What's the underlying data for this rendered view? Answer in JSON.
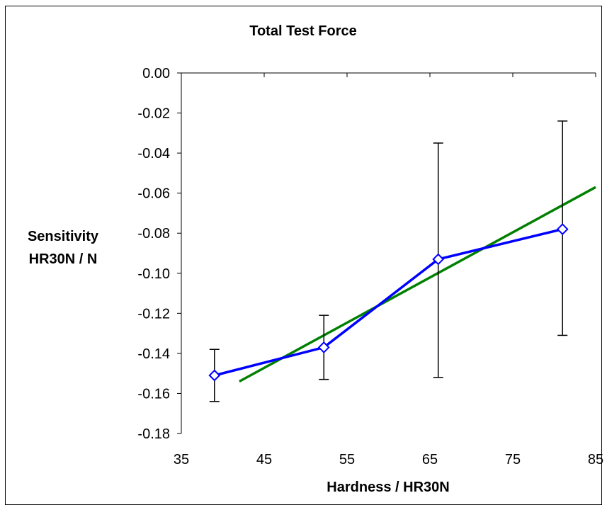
{
  "chart_data": {
    "type": "line",
    "title": "Total Test Force",
    "xlabel": "Hardness / HR30N",
    "ylabel_lines": [
      "Sensitivity",
      "HR30N / N"
    ],
    "xlim": [
      35,
      85
    ],
    "ylim": [
      -0.18,
      0.0
    ],
    "xticks": [
      35,
      45,
      55,
      65,
      75,
      85
    ],
    "xtick_labels": [
      "35",
      "45",
      "55",
      "65",
      "75",
      "85"
    ],
    "yticks": [
      0.0,
      -0.02,
      -0.04,
      -0.06,
      -0.08,
      -0.1,
      -0.12,
      -0.14,
      -0.16,
      -0.18
    ],
    "ytick_labels": [
      "0.00",
      "-0.02",
      "-0.04",
      "-0.06",
      "-0.08",
      "-0.10",
      "-0.12",
      "-0.14",
      "-0.16",
      "-0.18"
    ],
    "grid": false,
    "series": [
      {
        "kind": "line-with-markers",
        "marker": "diamond",
        "color": "#0000FF",
        "x": [
          39,
          52.2,
          66,
          81
        ],
        "y": [
          -0.151,
          -0.137,
          -0.093,
          -0.078
        ],
        "error_low": [
          -0.164,
          -0.153,
          -0.152,
          -0.131
        ],
        "error_high": [
          -0.138,
          -0.121,
          -0.035,
          -0.024
        ]
      },
      {
        "kind": "trendline",
        "color": "#008000",
        "x": [
          42,
          85
        ],
        "y": [
          -0.154,
          -0.057
        ]
      }
    ]
  }
}
